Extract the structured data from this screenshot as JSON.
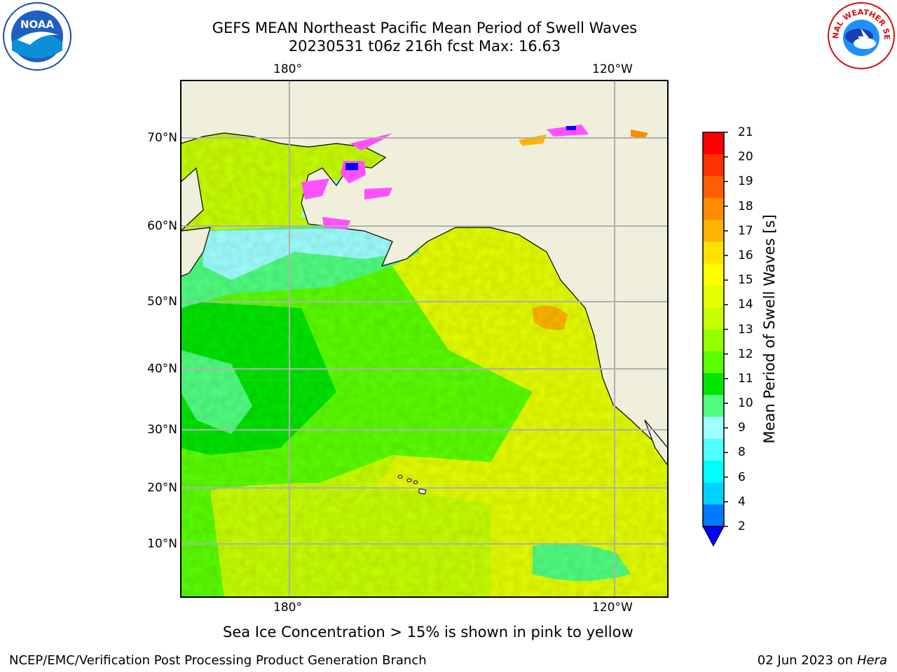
{
  "title": {
    "line1": "GEFS MEAN Northeast Pacific Mean Period of Swell Waves",
    "line2": "20230531 t06z 216h fcst   Max: 16.63"
  },
  "lon_labels": [
    "180°",
    "120°W"
  ],
  "lat_labels": [
    "70°N",
    "60°N",
    "50°N",
    "40°N",
    "30°N",
    "20°N",
    "10°N"
  ],
  "colorbar": {
    "title": "Mean Period of Swell Waves [s]",
    "ticks": [
      "21",
      "20",
      "19",
      "18",
      "17",
      "16",
      "15",
      "14",
      "13",
      "12",
      "11",
      "10",
      "9",
      "8",
      "6",
      "4",
      "2"
    ],
    "colors": [
      "#ff0000",
      "#ff3200",
      "#ff5f00",
      "#ff8c00",
      "#ffb400",
      "#ffe100",
      "#ffff00",
      "#e6ff00",
      "#c8ff00",
      "#96ff00",
      "#5aff00",
      "#00e600",
      "#50ff80",
      "#a0ffff",
      "#50ffff",
      "#00ffff",
      "#00d2ff",
      "#0078ff"
    ],
    "extend_color": "#0000ff"
  },
  "colors": {
    "land": "#efefdc",
    "grid": "#b0b0b0"
  },
  "footer": {
    "note": "Sea Ice Concentration > 15% is shown in pink to yellow",
    "credit": "NCEP/EMC/Verification Post Processing Product Generation Branch",
    "date": "02 Jun 2023 on",
    "host": "Hera"
  },
  "logos": {
    "noaa": "NOAA",
    "nws": "NATIONAL WEATHER SERVICE"
  }
}
